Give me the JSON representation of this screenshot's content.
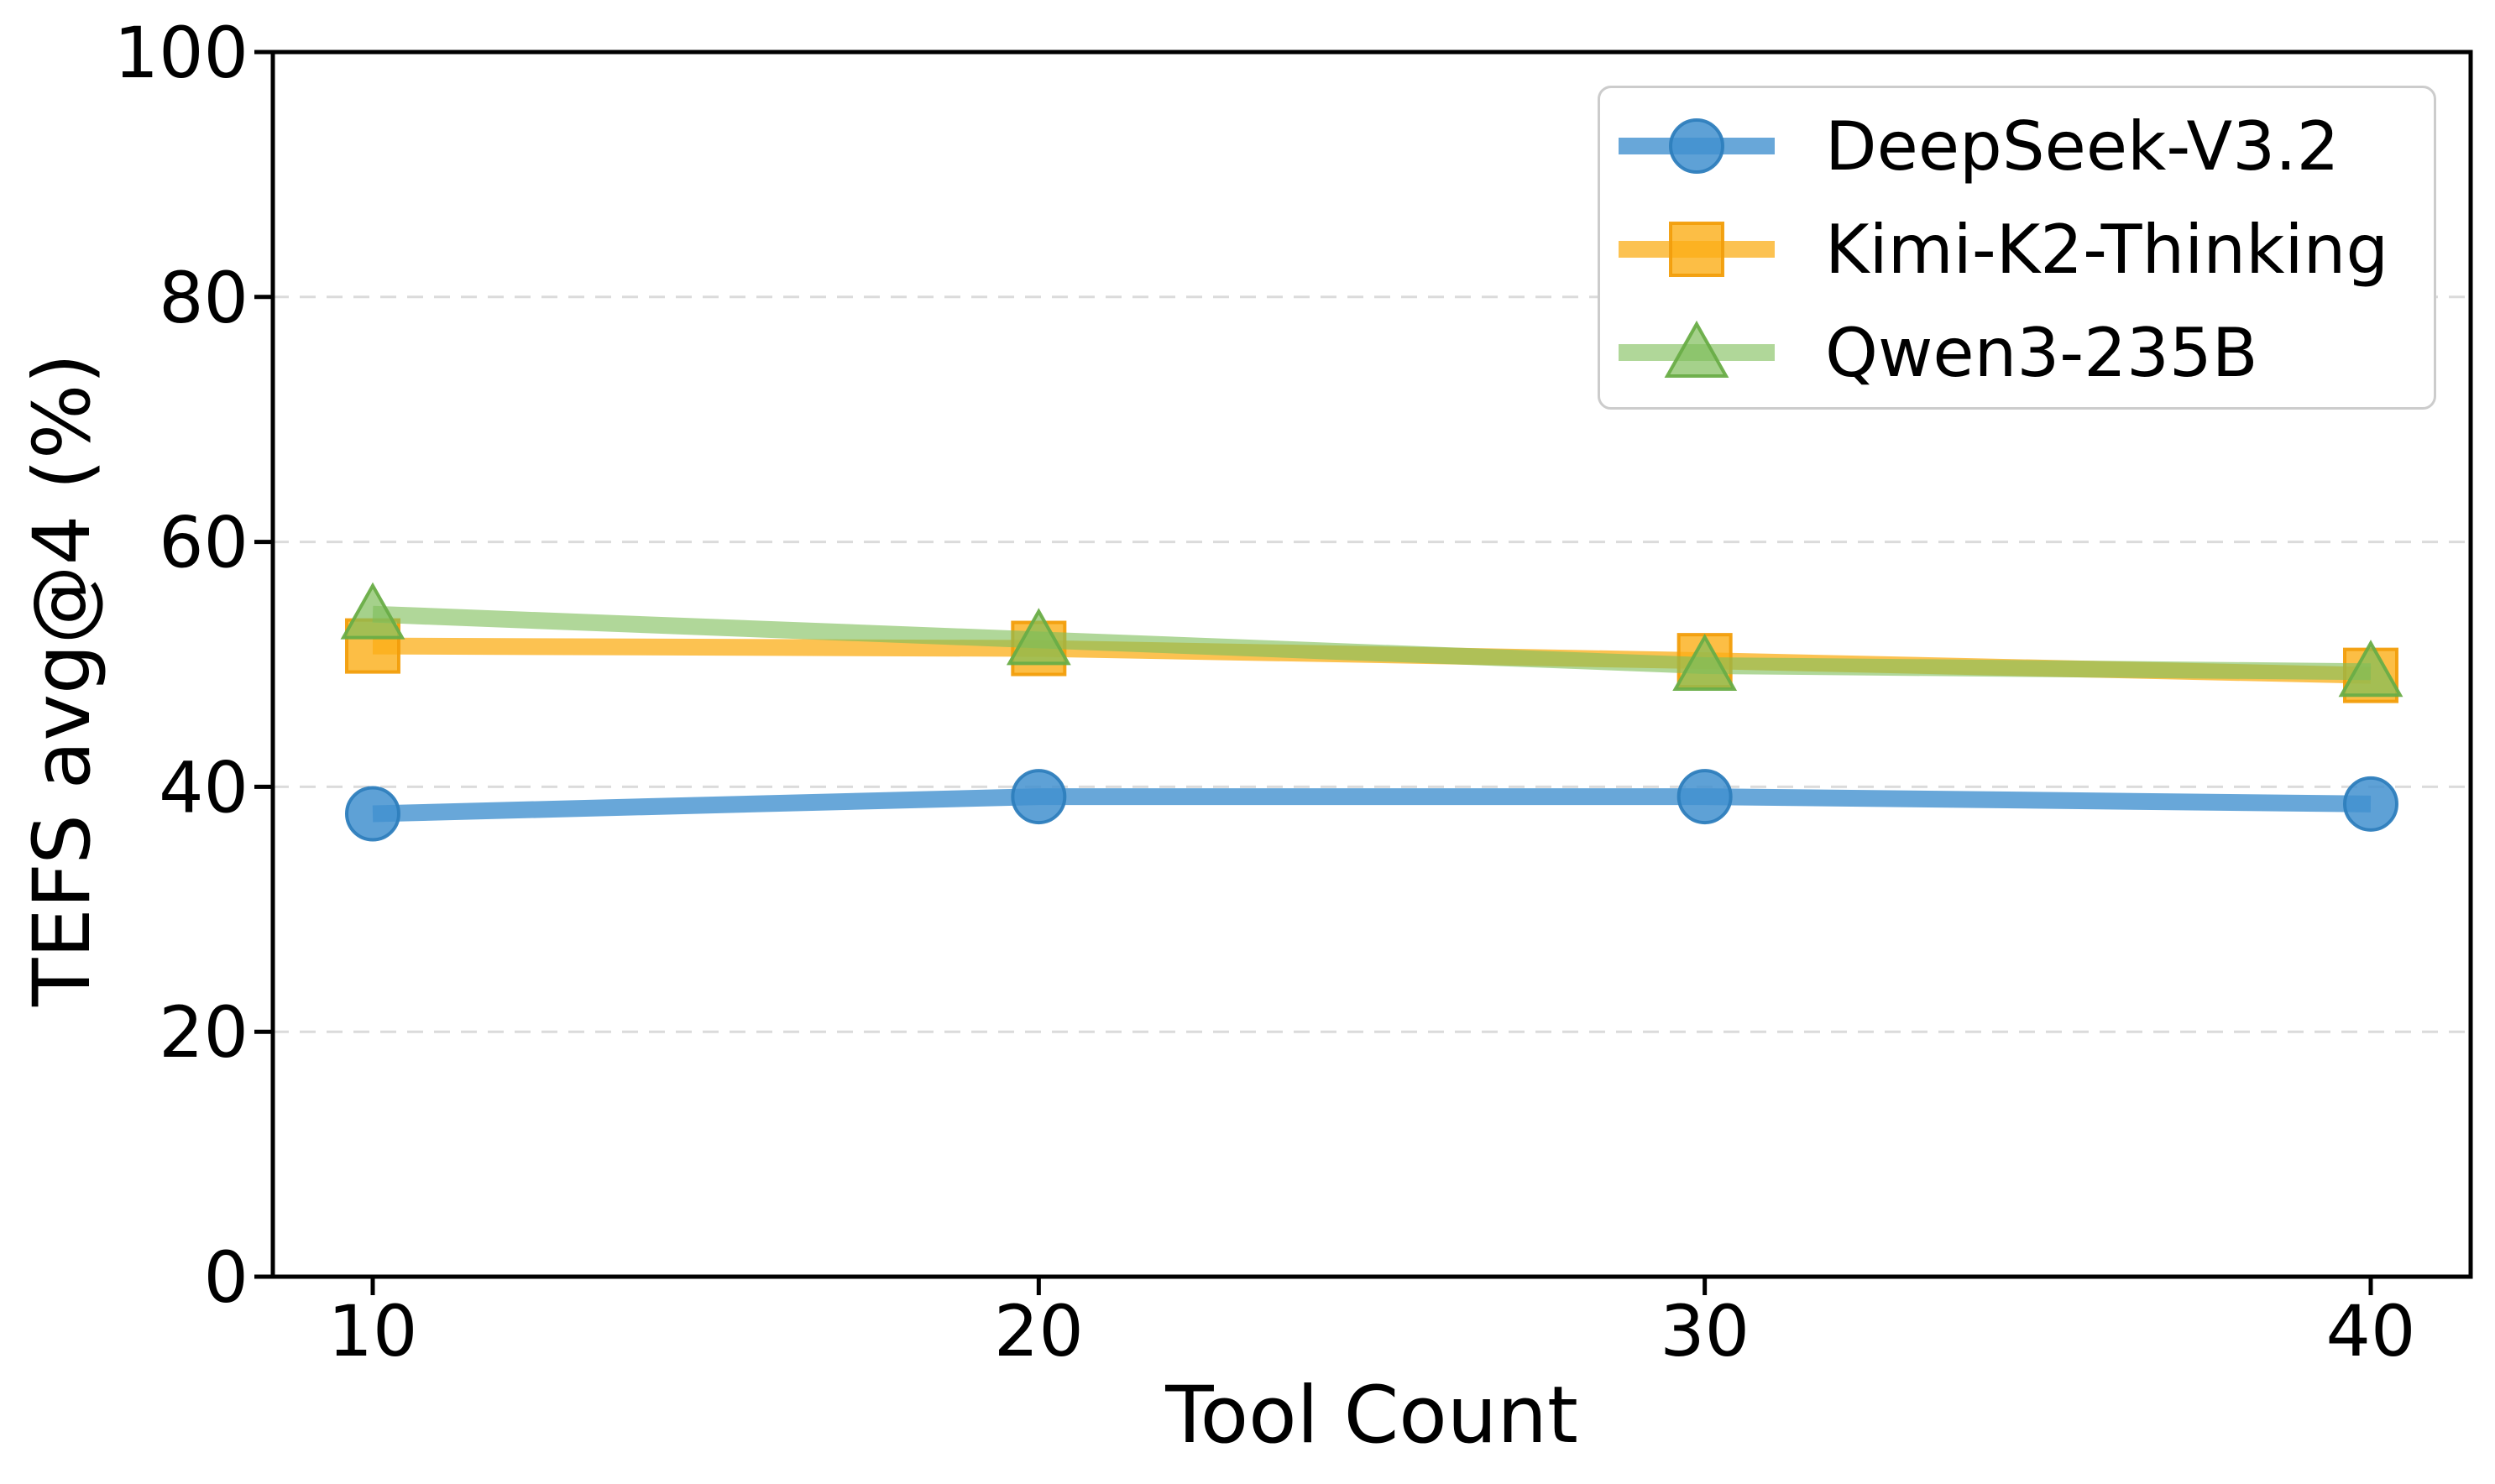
{
  "chart_data": {
    "type": "line",
    "title": "",
    "xlabel": "Tool Count",
    "ylabel": "TEFS avg@4 (%)",
    "x": [
      10,
      20,
      30,
      40
    ],
    "xticks": [
      10,
      20,
      30,
      40
    ],
    "yticks": [
      0,
      20,
      40,
      60,
      80,
      100
    ],
    "xlim": [
      8.5,
      41.5
    ],
    "ylim": [
      0,
      100
    ],
    "grid": "horizontal-dashed",
    "legend_position": "upper right",
    "series": [
      {
        "name": "DeepSeek-V3.2",
        "marker": "circle",
        "color": "#4291CF",
        "edge_color": "#2E7EBD",
        "line_alpha": 0.8,
        "fill_alpha": 0.85,
        "values": [
          37.8,
          39.2,
          39.2,
          38.6
        ]
      },
      {
        "name": "Kimi-K2-Thinking",
        "marker": "square",
        "color": "#FBAE17",
        "edge_color": "#F29E0C",
        "line_alpha": 0.75,
        "fill_alpha": 0.8,
        "values": [
          51.5,
          51.3,
          50.3,
          49.1
        ]
      },
      {
        "name": "Qwen3-235B",
        "marker": "triangle",
        "color": "#7FBE5A",
        "edge_color": "#69AD47",
        "line_alpha": 0.62,
        "fill_alpha": 0.7,
        "values": [
          54.1,
          52.0,
          49.9,
          49.4
        ]
      }
    ],
    "colors": {
      "grid": "#DBDBDB",
      "spine": "#000000",
      "legend_border": "#CCCCCC",
      "text": "#000000",
      "background": "#FFFFFF"
    }
  }
}
